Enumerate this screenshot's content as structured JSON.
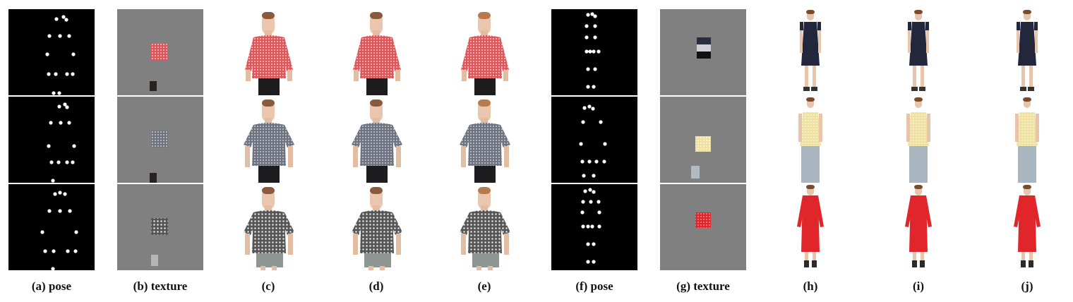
{
  "figure": {
    "captions": {
      "a": "(a) pose",
      "b": "(b) texture",
      "c": "(c)",
      "d": "(d)",
      "e": "(e)",
      "f": "(f) pose",
      "g": "(g) texture",
      "h": "(h)",
      "i": "(i)",
      "j": "(j)"
    },
    "colors": {
      "pose_background": "#000000",
      "keypoint": "#ffffff",
      "texture_background": "#808080",
      "red_pattern": "#e0555a",
      "gray_pattern": "#6f7380",
      "bw_pattern": "#555555",
      "navy_dress": "#22273c",
      "yellow_stripe": "#efe2a1",
      "red_dress": "#e0262a"
    }
  }
}
